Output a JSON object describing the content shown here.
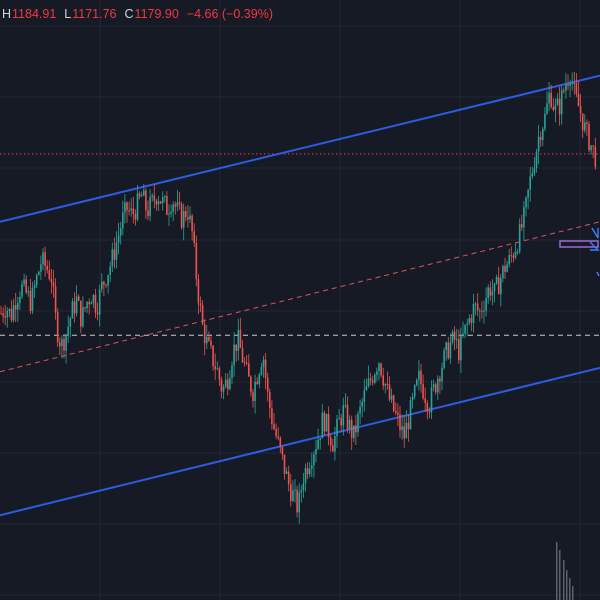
{
  "legend": {
    "high_label": "H",
    "high_value": "1184.91",
    "low_label": "L",
    "low_value": "1171.76",
    "close_label": "C",
    "close_value": "1179.90",
    "change": "−4.66 (−0.39%)"
  },
  "colors": {
    "background": "#161a25",
    "grid": "#232734",
    "candle_up": "#26a69a",
    "candle_down": "#ef5350",
    "channel_line": "#2f5be3",
    "mid_channel": "#e05260",
    "price_line_red": "#f23645",
    "price_line_white": "#c9ccd6",
    "text_label": "#d1d4dc",
    "text_value": "#f23645",
    "volume": "#5d606b",
    "marker_purple": "#9c6ad6",
    "marker_blue": "#3d7bfd"
  },
  "chart_data": {
    "type": "candlestick",
    "title": "",
    "xlabel": "",
    "ylabel": "",
    "ylim": [
      800,
      1260
    ],
    "grid": true,
    "price_series": [
      1020,
      1025,
      1018,
      1032,
      1040,
      1035,
      1028,
      1045,
      1060,
      1055,
      1048,
      1010,
      995,
      1005,
      1020,
      1030,
      1015,
      1028,
      1035,
      1025,
      1040,
      1050,
      1060,
      1075,
      1090,
      1100,
      1095,
      1102,
      1110,
      1098,
      1104,
      1112,
      1105,
      1100,
      1108,
      1098,
      1092,
      1100,
      1080,
      1040,
      1010,
      995,
      985,
      975,
      960,
      970,
      990,
      1000,
      985,
      970,
      960,
      975,
      990,
      955,
      935,
      920,
      905,
      890,
      880,
      870,
      895,
      905,
      915,
      925,
      940,
      930,
      920,
      935,
      945,
      935,
      925,
      940,
      955,
      965,
      975,
      985,
      970,
      955,
      945,
      935,
      925,
      940,
      955,
      970,
      960,
      950,
      962,
      975,
      985,
      995,
      1000,
      990,
      1005,
      1015,
      1025,
      1020,
      1030,
      1040,
      1035,
      1045,
      1055,
      1060,
      1070,
      1080,
      1095,
      1120,
      1140,
      1160,
      1170,
      1190,
      1175,
      1180,
      1195,
      1205,
      1185,
      1175,
      1160,
      1150,
      1140
    ],
    "channel": {
      "upper": {
        "start": 1090,
        "end": 1202
      },
      "lower": {
        "start": 865,
        "end": 978
      },
      "middle": {
        "start": 975,
        "end": 1090
      }
    },
    "horizontal_lines": [
      {
        "price": 1142,
        "style": "dotted",
        "color_key": "price_line_red"
      },
      {
        "price": 1003,
        "style": "dashed",
        "color_key": "price_line_white"
      }
    ]
  }
}
